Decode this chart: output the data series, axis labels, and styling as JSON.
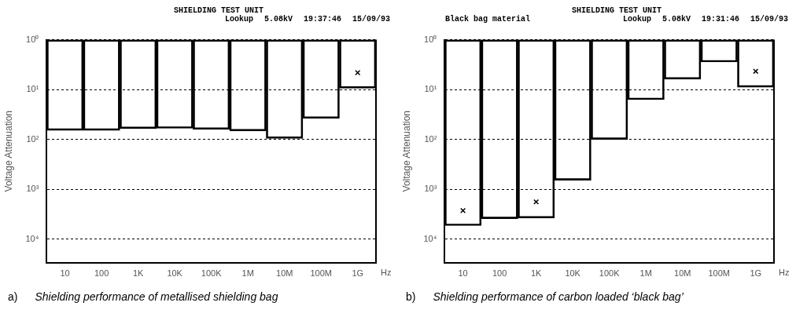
{
  "chart_data": [
    {
      "type": "bar",
      "title": "SHIELDING TEST UNIT",
      "ylabel": "Voltage Attenuation",
      "xlabel": "Hz",
      "categories": [
        "10",
        "100",
        "1K",
        "10K",
        "100K",
        "1M",
        "10M",
        "100M",
        "1G"
      ],
      "series": [
        {
          "color": "#000000",
          "values": [
            66,
            66,
            61,
            60,
            63,
            68,
            96,
            38,
            9.4
          ]
        },
        {
          "type": "scatter",
          "color": "#000000",
          "x": [
            "1G"
          ],
          "values": [
            4.6
          ]
        }
      ],
      "marker": "cross",
      "log": "y",
      "ylim": [
        30000,
        1
      ],
      "yticks": [
        {
          "value": 1,
          "label": "10⁰"
        },
        {
          "value": 10,
          "label": "10¹"
        },
        {
          "value": 100,
          "label": "10²"
        },
        {
          "value": 1000,
          "label": "10³"
        },
        {
          "value": 10000,
          "label": "10⁴"
        }
      ],
      "grid": "y",
      "legend": false,
      "annotations": [
        "Lookup",
        "5.08kV",
        "19:37:46",
        "15/09/93",
        "a)",
        "Shielding performance of metallised shielding bag"
      ]
    },
    {
      "type": "bar",
      "title": "SHIELDING TEST UNIT",
      "subtitle": "Black bag material",
      "ylabel": "Voltage Attenuation",
      "xlabel": "Hz",
      "categories": [
        "10",
        "100",
        "1K",
        "10K",
        "100K",
        "1M",
        "10M",
        "100M",
        "1G"
      ],
      "series": [
        {
          "color": "#000000",
          "values": [
            5400,
            3900,
            3800,
            660,
            100,
            16,
            6.2,
            2.8,
            9.0
          ]
        },
        {
          "type": "scatter",
          "color": "#000000",
          "x": [
            "10",
            "1K",
            "1G"
          ],
          "values": [
            2700,
            1800,
            4.3
          ]
        }
      ],
      "marker": "cross",
      "log": "y",
      "ylim": [
        30000,
        1
      ],
      "yticks": [
        {
          "value": 1,
          "label": "10⁰"
        },
        {
          "value": 10,
          "label": "10¹"
        },
        {
          "value": 100,
          "label": "10²"
        },
        {
          "value": 1000,
          "label": "10³"
        },
        {
          "value": 10000,
          "label": "10⁴"
        }
      ],
      "grid": "y",
      "legend": false,
      "annotations": [
        "Lookup",
        "5.08kV",
        "19:31:46",
        "15/09/93",
        "b)",
        "Shielding performance of carbon loaded ‘black bag’"
      ]
    }
  ]
}
